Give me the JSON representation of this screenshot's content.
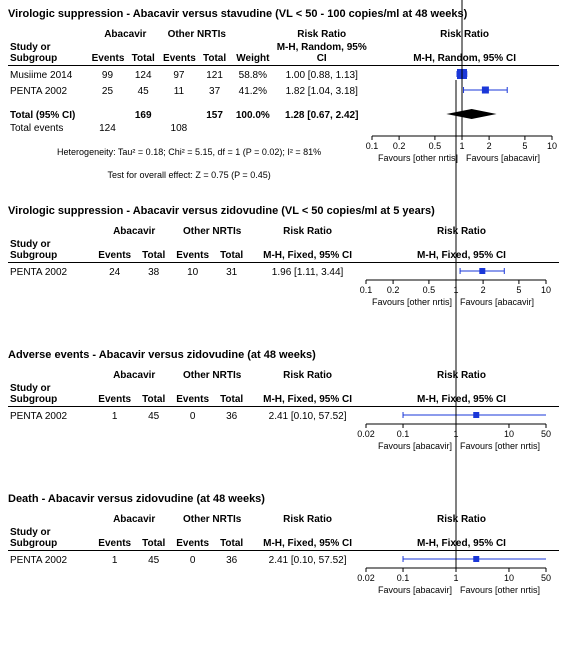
{
  "colors": {
    "marker": "#1a37d8",
    "ci": "#1a37d8",
    "diamond": "#000000",
    "axis": "#000000",
    "text": "#000000"
  },
  "plot": {
    "width": 180,
    "height": 14,
    "axis_height": 30
  },
  "panels": [
    {
      "title": "Virologic suppression - Abacavir versus stavudine (VL < 50 - 100 copies/ml at 48 weeks)",
      "model": "M-H, Random, 95% CI",
      "scale": {
        "min": 0.1,
        "max": 10,
        "ticks": [
          0.1,
          0.2,
          0.5,
          1,
          2,
          5,
          10
        ]
      },
      "fav_left": "Favours [other nrtis]",
      "fav_right": "Favours [abacavir]",
      "col_group1": "Abacavir",
      "col_group2": "Other NRTIs",
      "rows": [
        {
          "study": "Musiime 2014",
          "e1": 99,
          "n1": 124,
          "e2": 97,
          "n2": 121,
          "weight": "58.8%",
          "rr_text": "1.00 [0.88, 1.13]",
          "rr": 1.0,
          "lo": 0.88,
          "hi": 1.13,
          "box": 10
        },
        {
          "study": "PENTA 2002",
          "e1": 25,
          "n1": 45,
          "e2": 11,
          "n2": 37,
          "weight": "41.2%",
          "rr_text": "1.82 [1.04, 3.18]",
          "rr": 1.82,
          "lo": 1.04,
          "hi": 3.18,
          "box": 7
        }
      ],
      "total": {
        "label": "Total (95% CI)",
        "n1": 169,
        "n2": 157,
        "weight": "100.0%",
        "rr_text": "1.28 [0.67, 2.42]",
        "rr": 1.28,
        "lo": 0.67,
        "hi": 2.42
      },
      "events": {
        "label": "Total events",
        "e1": 124,
        "e2": 108
      },
      "het": "Heterogeneity: Tau² = 0.18; Chi² = 5.15, df = 1 (P = 0.02); I² = 81%",
      "test": "Test for overall effect: Z = 0.75 (P = 0.45)"
    },
    {
      "title": "Virologic suppression - Abacavir versus zidovudine (VL < 50 copies/ml at 5 years)",
      "model": "M-H, Fixed, 95% CI",
      "scale": {
        "min": 0.1,
        "max": 10,
        "ticks": [
          0.1,
          0.2,
          0.5,
          1,
          2,
          5,
          10
        ]
      },
      "fav_left": "Favours [other nrtis]",
      "fav_right": "Favours [abacavir]",
      "col_group1": "Abacavir",
      "col_group2": "Other NRTIs",
      "rows": [
        {
          "study": "PENTA 2002",
          "e1": 24,
          "n1": 38,
          "e2": 10,
          "n2": 31,
          "weight": "",
          "rr_text": "1.96 [1.11, 3.44]",
          "rr": 1.96,
          "lo": 1.11,
          "hi": 3.44,
          "box": 6
        }
      ]
    },
    {
      "title": "Adverse events - Abacavir versus zidovudine (at 48 weeks)",
      "model": "M-H, Fixed, 95% CI",
      "scale": {
        "min": 0.02,
        "max": 50,
        "ticks": [
          0.02,
          0.1,
          1,
          10,
          50
        ]
      },
      "fav_left": "Favours [abacavir]",
      "fav_right": "Favours [other nrtis]",
      "col_group1": "Abacavir",
      "col_group2": "Other NRTIs",
      "rows": [
        {
          "study": "PENTA 2002",
          "e1": 1,
          "n1": 45,
          "e2": 0,
          "n2": 36,
          "weight": "",
          "rr_text": "2.41 [0.10, 57.52]",
          "rr": 2.41,
          "lo": 0.1,
          "hi": 57.52,
          "box": 6
        }
      ]
    },
    {
      "title": "Death - Abacavir versus zidovudine (at 48 weeks)",
      "model": "M-H, Fixed, 95% CI",
      "scale": {
        "min": 0.02,
        "max": 50,
        "ticks": [
          0.02,
          0.1,
          1,
          10,
          50
        ]
      },
      "fav_left": "Favours [abacavir]",
      "fav_right": "Favours [other nrtis]",
      "col_group1": "Abacavir",
      "col_group2": "Other NRTIs",
      "rows": [
        {
          "study": "PENTA 2002",
          "e1": 1,
          "n1": 45,
          "e2": 0,
          "n2": 36,
          "weight": "",
          "rr_text": "2.41 [0.10, 57.52]",
          "rr": 2.41,
          "lo": 0.1,
          "hi": 57.52,
          "box": 6
        }
      ]
    }
  ],
  "hdr": {
    "study": "Study or Subgroup",
    "events": "Events",
    "total": "Total",
    "weight": "Weight",
    "rr": "Risk Ratio",
    "rr_plot": "Risk Ratio"
  }
}
